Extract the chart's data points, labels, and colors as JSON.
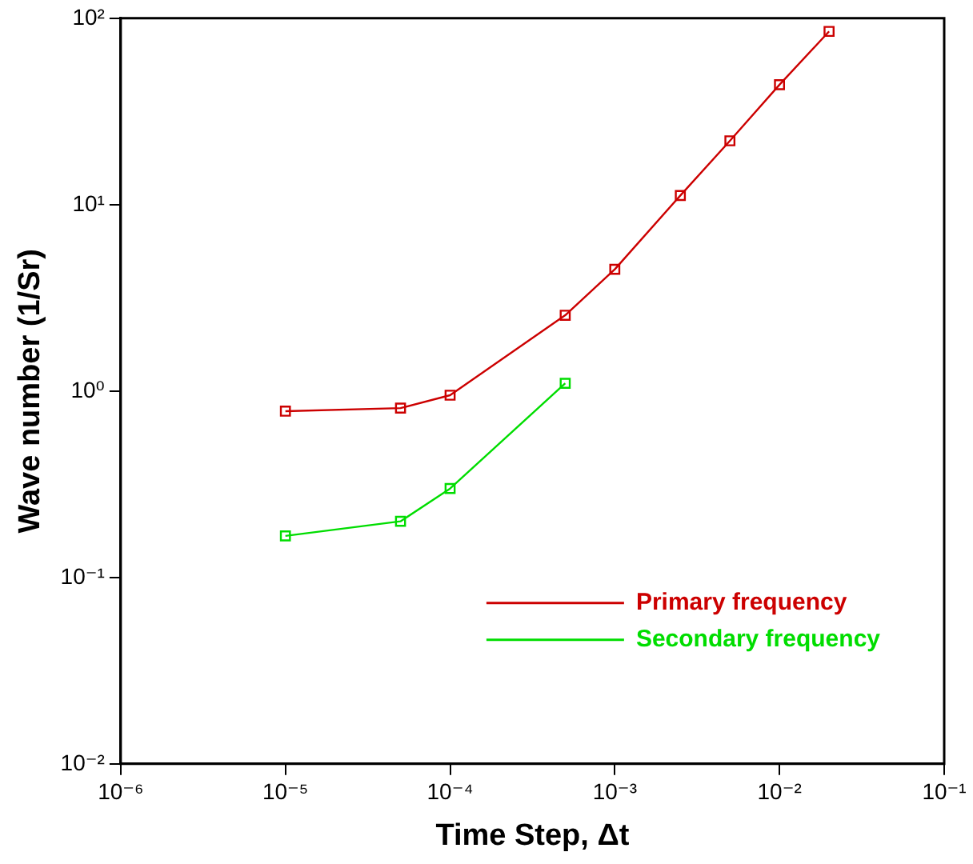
{
  "chart_data": {
    "type": "line",
    "xlabel": "Time Step, Δt",
    "ylabel": "Wave number (1/Sr)",
    "log": "xy",
    "xlim": [
      1e-06,
      0.1
    ],
    "ylim": [
      0.01,
      100
    ],
    "xticks": [
      {
        "value": 1e-06,
        "label": "10⁻⁶"
      },
      {
        "value": 1e-05,
        "label": "10⁻⁵"
      },
      {
        "value": 0.0001,
        "label": "10⁻⁴"
      },
      {
        "value": 0.001,
        "label": "10⁻³"
      },
      {
        "value": 0.01,
        "label": "10⁻²"
      },
      {
        "value": 0.1,
        "label": "10⁻¹"
      }
    ],
    "yticks": [
      {
        "value": 0.01,
        "label": "10⁻²"
      },
      {
        "value": 0.1,
        "label": "10⁻¹"
      },
      {
        "value": 1,
        "label": "10⁰"
      },
      {
        "value": 10,
        "label": "10¹"
      },
      {
        "value": 100,
        "label": "10²"
      }
    ],
    "grid": false,
    "legend": "bottom right",
    "marker": "square",
    "line_style": "solid",
    "series": [
      {
        "name": "Primary frequency",
        "color": "#cc0000",
        "x": [
          1e-05,
          5e-05,
          0.0001,
          0.0005,
          0.001,
          0.0025,
          0.005,
          0.01,
          0.02
        ],
        "values": [
          0.78,
          0.81,
          0.95,
          2.55,
          4.5,
          11.2,
          22,
          44,
          85
        ]
      },
      {
        "name": "Secondary frequency",
        "color": "#00dd00",
        "x": [
          1e-05,
          5e-05,
          0.0001,
          0.0005
        ],
        "values": [
          0.167,
          0.2,
          0.3,
          1.1
        ]
      }
    ]
  }
}
